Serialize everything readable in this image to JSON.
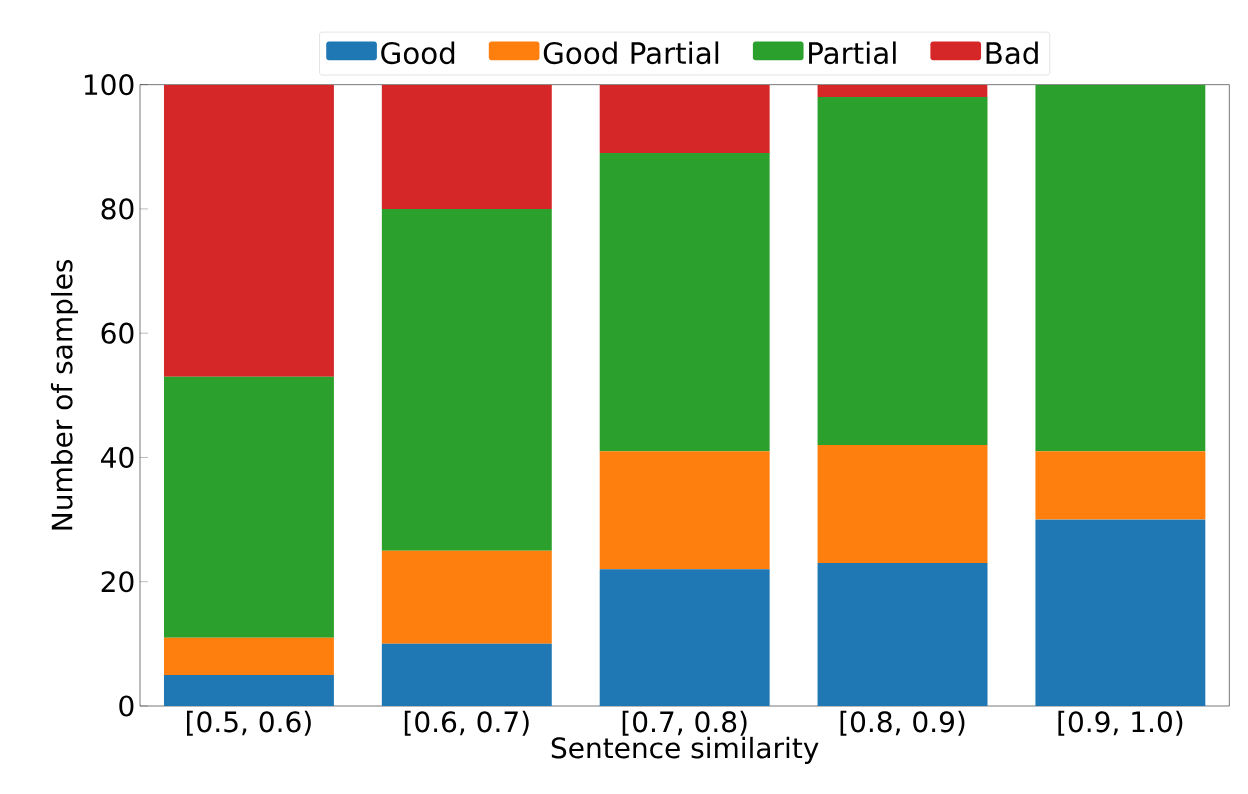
{
  "chart_data": {
    "type": "bar",
    "stacked": true,
    "xlabel": "Sentence similarity",
    "ylabel": "Number of samples",
    "categories": [
      "[0.5, 0.6)",
      "[0.6, 0.7)",
      "[0.7, 0.8)",
      "[0.8, 0.9)",
      "[0.9, 1.0)"
    ],
    "series": [
      {
        "name": "Good",
        "color": "#1f77b4",
        "values": [
          5,
          10,
          22,
          23,
          30
        ]
      },
      {
        "name": "Good Partial",
        "color": "#ff7f0e",
        "values": [
          6,
          15,
          19,
          19,
          11
        ]
      },
      {
        "name": "Partial",
        "color": "#2ca02c",
        "values": [
          42,
          55,
          48,
          56,
          59
        ]
      },
      {
        "name": "Bad",
        "color": "#d62728",
        "values": [
          47,
          20,
          11,
          2,
          0
        ]
      }
    ],
    "ylim": [
      0,
      100
    ],
    "yticks": [
      0,
      20,
      40,
      60,
      80,
      100
    ],
    "legend": "top"
  }
}
